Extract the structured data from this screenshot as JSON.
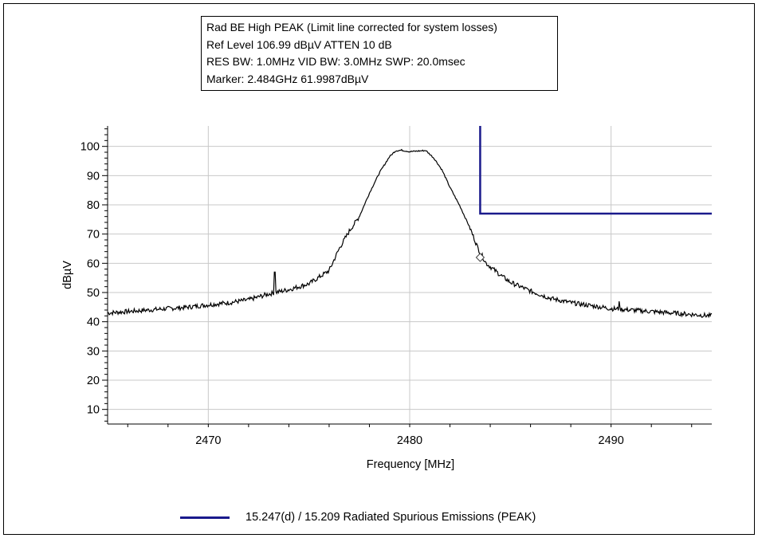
{
  "info_box": {
    "lines": [
      "Rad BE High PEAK (Limit line corrected for system losses)",
      "Ref Level 106.99 dBµV    ATTEN 10 dB",
      "RES BW: 1.0MHz  VID BW: 3.0MHz  SWP: 20.0msec",
      "Marker: 2.484GHz  61.9987dBµV"
    ]
  },
  "legend": {
    "label": "15.247(d) / 15.209 Radiated Spurious Emissions (PEAK)",
    "color": "#1a1a8c"
  },
  "chart_data": {
    "type": "line",
    "xlabel": "Frequency [MHz]",
    "ylabel": "dBµV",
    "xlim": [
      2465,
      2495
    ],
    "ylim": [
      5,
      107
    ],
    "x_ticks": [
      2470,
      2480,
      2490
    ],
    "y_ticks": [
      10,
      20,
      30,
      40,
      50,
      60,
      70,
      80,
      90,
      100
    ],
    "grid": true,
    "legend_position": "bottom",
    "series": [
      {
        "color": "#000000",
        "x": [
          2465,
          2466,
          2467,
          2468,
          2469,
          2470,
          2471,
          2472,
          2473,
          2474,
          2475,
          2476,
          2476.5,
          2477,
          2477.5,
          2478,
          2478.5,
          2479,
          2479.3,
          2479.6,
          2480,
          2480.4,
          2480.8,
          2481.2,
          2481.6,
          2482,
          2482.5,
          2483,
          2483.4,
          2483.8,
          2484.5,
          2485,
          2486,
          2487,
          2488,
          2489,
          2490,
          2491,
          2492,
          2493,
          2494,
          2495
        ],
        "y": [
          43,
          43.5,
          44,
          44.5,
          45,
          45.8,
          46.5,
          47.5,
          49.5,
          51,
          53,
          57.5,
          65,
          71,
          76,
          84,
          91,
          96.5,
          98.5,
          98.7,
          98.2,
          98.4,
          98.6,
          96,
          92,
          86,
          79.5,
          72,
          65,
          60,
          56,
          53.5,
          50.5,
          48,
          46.5,
          45.5,
          44.5,
          44,
          43.5,
          43,
          42.5,
          42
        ]
      },
      {
        "name": "15.247(d) / 15.209 Radiated Spurious Emissions (PEAK)",
        "color": "#1a1a8c",
        "x": [
          2483.5,
          2483.5,
          2495
        ],
        "y": [
          107,
          77,
          77
        ]
      }
    ],
    "spurs": [
      {
        "x": 2473.3,
        "y": 57
      },
      {
        "x": 2490.4,
        "y": 47
      }
    ],
    "marker": {
      "x": 2483.5,
      "y": 62.0
    }
  }
}
